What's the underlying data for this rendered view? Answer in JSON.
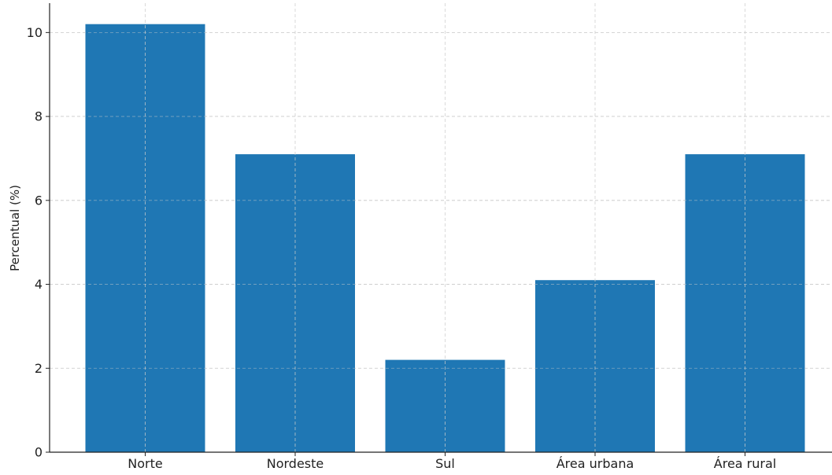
{
  "chart_data": {
    "type": "bar",
    "title": "",
    "xlabel": "",
    "ylabel": "Percentual (%)",
    "categories": [
      "Norte",
      "Nordeste",
      "Sul",
      "Área urbana",
      "Área rural"
    ],
    "values": [
      10.2,
      7.1,
      2.2,
      4.1,
      7.1
    ],
    "ylim": [
      0,
      10.7
    ],
    "yticks": [
      0,
      2,
      4,
      6,
      8,
      10
    ],
    "ytick_labels": [
      "0",
      "2",
      "4",
      "6",
      "8",
      "10"
    ],
    "grid": true,
    "legend": "none",
    "bar_color": "#1f77b4",
    "grid_color": "#cccccc",
    "axis_color": "#222222"
  }
}
